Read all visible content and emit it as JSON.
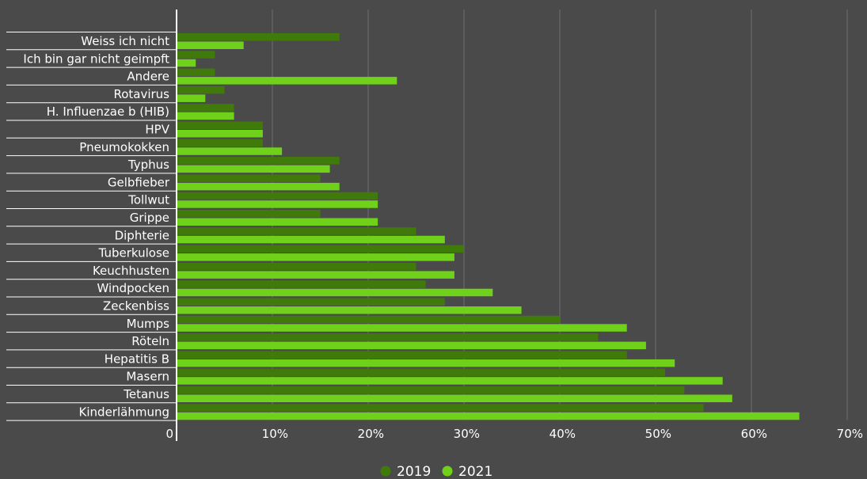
{
  "chart_data": {
    "type": "bar",
    "orientation": "horizontal",
    "categories": [
      "Weiss ich nicht",
      "Ich bin gar nicht geimpft",
      "Andere",
      "Rotavirus",
      "H. Influenzae b (HIB)",
      "HPV",
      "Pneumokokken",
      "Typhus",
      "Gelbfieber",
      "Tollwut",
      "Grippe",
      "Diphterie",
      "Tuberkulose",
      "Keuchhusten",
      "Windpocken",
      "Zeckenbiss",
      "Mumps",
      "Röteln",
      "Hepatitis B",
      "Masern",
      "Tetanus",
      "Kinderlähmung"
    ],
    "series": [
      {
        "name": "2019",
        "color": "#3f7a0b",
        "values": [
          17,
          4,
          4,
          5,
          6,
          9,
          9,
          17,
          15,
          21,
          15,
          25,
          30,
          25,
          26,
          28,
          40,
          44,
          47,
          51,
          53,
          55
        ]
      },
      {
        "name": "2021",
        "color": "#6fd11a",
        "values": [
          7,
          2,
          23,
          3,
          6,
          9,
          11,
          16,
          17,
          21,
          21,
          28,
          29,
          29,
          33,
          36,
          47,
          49,
          52,
          57,
          58,
          65
        ]
      }
    ],
    "xlim": [
      0,
      70
    ],
    "xticks": [
      {
        "value": 0,
        "label": "0"
      },
      {
        "value": 10,
        "label": "10%"
      },
      {
        "value": 20,
        "label": "20%"
      },
      {
        "value": 30,
        "label": "30%"
      },
      {
        "value": 40,
        "label": "40%"
      },
      {
        "value": 50,
        "label": "50%"
      },
      {
        "value": 60,
        "label": "60%"
      },
      {
        "value": 70,
        "label": "70%"
      }
    ],
    "grid": "vertical",
    "legend_position": "bottom",
    "background": "#4a4a4a"
  }
}
